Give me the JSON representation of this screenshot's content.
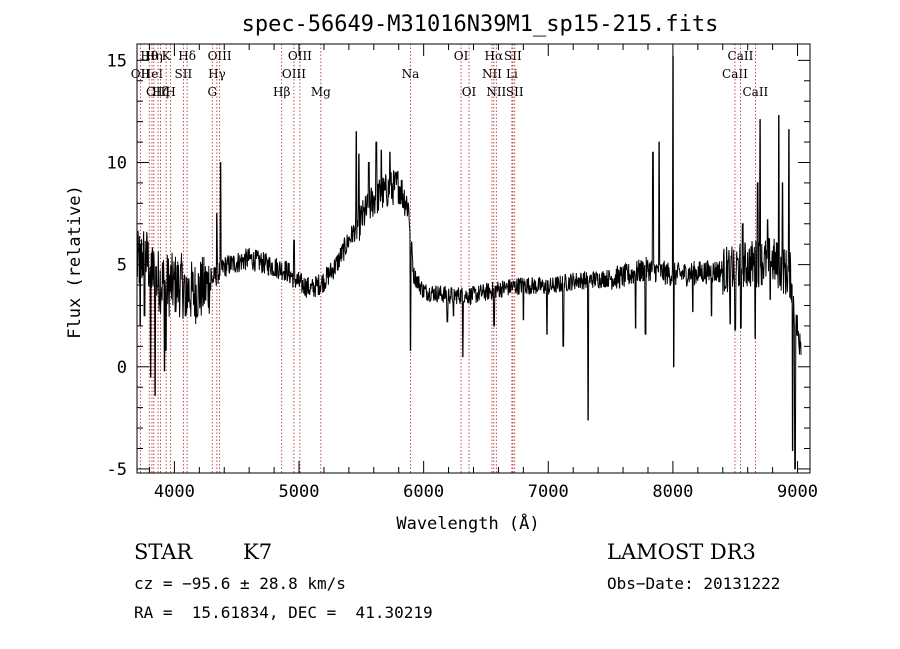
{
  "chart_data": {
    "type": "line",
    "title": "spec-56649-M31016N39M1_sp15-215.fits",
    "xlabel": "Wavelength (Å)",
    "ylabel": "Flux (relative)",
    "xlim": [
      3700,
      9100
    ],
    "ylim": [
      -5.2,
      15.8
    ],
    "x_ticks": [
      4000,
      5000,
      6000,
      7000,
      8000,
      9000
    ],
    "y_ticks": [
      -5,
      0,
      5,
      10,
      15
    ],
    "grid": false,
    "line_color": "#000000",
    "marker_color": "#b22222",
    "spectrum": {
      "name": "",
      "anchors": [
        [
          3700,
          5.0
        ],
        [
          3760,
          5.5
        ],
        [
          3850,
          4.3
        ],
        [
          3950,
          4.0
        ],
        [
          4050,
          4.0
        ],
        [
          4150,
          3.6
        ],
        [
          4250,
          3.9
        ],
        [
          4400,
          4.9
        ],
        [
          4500,
          5.1
        ],
        [
          4600,
          5.3
        ],
        [
          4700,
          5.1
        ],
        [
          4800,
          4.9
        ],
        [
          4900,
          4.7
        ],
        [
          5000,
          4.1
        ],
        [
          5100,
          3.8
        ],
        [
          5200,
          4.2
        ],
        [
          5300,
          5.0
        ],
        [
          5400,
          6.2
        ],
        [
          5500,
          7.2
        ],
        [
          5600,
          8.2
        ],
        [
          5700,
          8.6
        ],
        [
          5800,
          8.9
        ],
        [
          5880,
          7.8
        ],
        [
          5920,
          4.5
        ],
        [
          6000,
          3.7
        ],
        [
          6200,
          3.5
        ],
        [
          6400,
          3.5
        ],
        [
          6600,
          3.8
        ],
        [
          6800,
          4.0
        ],
        [
          7000,
          3.9
        ],
        [
          7200,
          4.2
        ],
        [
          7400,
          4.3
        ],
        [
          7600,
          4.4
        ],
        [
          7800,
          4.8
        ],
        [
          8000,
          4.5
        ],
        [
          8200,
          4.6
        ],
        [
          8400,
          4.7
        ],
        [
          8600,
          5.0
        ],
        [
          8800,
          5.2
        ],
        [
          8950,
          4.4
        ],
        [
          9000,
          1.6
        ]
      ],
      "features": [
        [
          3725,
          2.0
        ],
        [
          3760,
          2.5
        ],
        [
          3810,
          -0.5
        ],
        [
          3845,
          -1.4
        ],
        [
          3920,
          -0.2
        ],
        [
          3933,
          0.8
        ],
        [
          4090,
          2.5
        ],
        [
          4340,
          7.5
        ],
        [
          4370,
          10.0
        ],
        [
          4960,
          6.2
        ],
        [
          5460,
          11.5
        ],
        [
          5480,
          10.4
        ],
        [
          5560,
          10.0
        ],
        [
          5620,
          11.0
        ],
        [
          5660,
          10.6
        ],
        [
          5730,
          10.5
        ],
        [
          5895,
          0.8
        ],
        [
          6190,
          2.2
        ],
        [
          6240,
          2.5
        ],
        [
          6315,
          0.5
        ],
        [
          6565,
          2.0
        ],
        [
          6800,
          2.3
        ],
        [
          6990,
          1.6
        ],
        [
          7120,
          1.0
        ],
        [
          7320,
          -2.6
        ],
        [
          7700,
          1.9
        ],
        [
          7780,
          1.6
        ],
        [
          7840,
          10.5
        ],
        [
          7890,
          11.0
        ],
        [
          8000,
          15.2
        ],
        [
          8005,
          0.0
        ],
        [
          8160,
          2.7
        ],
        [
          8310,
          2.5
        ],
        [
          8460,
          2.1
        ],
        [
          8500,
          1.8
        ],
        [
          8545,
          1.9
        ],
        [
          8560,
          7.0
        ],
        [
          8660,
          1.4
        ],
        [
          8680,
          9.0
        ],
        [
          8700,
          12.1
        ],
        [
          8760,
          7.2
        ],
        [
          8780,
          3.3
        ],
        [
          8850,
          12.3
        ],
        [
          8880,
          9.0
        ],
        [
          8930,
          11.6
        ],
        [
          8960,
          -4.1
        ],
        [
          8980,
          -5.0
        ]
      ]
    },
    "line_markers": [
      {
        "x": 3727,
        "row": 1,
        "label": "OII"
      },
      {
        "x": 3798,
        "row": 0,
        "label": "Hθ"
      },
      {
        "x": 3820,
        "row": 1,
        "label": "HeI"
      },
      {
        "x": 3835,
        "row": 0,
        "label": "Hη"
      },
      {
        "x": 3869,
        "row": 2,
        "label": "OIII"
      },
      {
        "x": 3889,
        "row": 2,
        "label": "Hζ"
      },
      {
        "x": 3934,
        "row": 0,
        "label": "K"
      },
      {
        "x": 3970,
        "row": 2,
        "label": "H"
      },
      {
        "x": 4072,
        "row": 1,
        "label": "SII"
      },
      {
        "x": 4102,
        "row": 0,
        "label": "Hδ"
      },
      {
        "x": 4304,
        "row": 2,
        "label": "G"
      },
      {
        "x": 4341,
        "row": 1,
        "label": "Hγ"
      },
      {
        "x": 4363,
        "row": 0,
        "label": "OIII"
      },
      {
        "x": 4861,
        "row": 2,
        "label": "Hβ"
      },
      {
        "x": 4959,
        "row": 1,
        "label": "OIII"
      },
      {
        "x": 5007,
        "row": 0,
        "label": "OIII"
      },
      {
        "x": 5175,
        "row": 2,
        "label": "Mg"
      },
      {
        "x": 5894,
        "row": 1,
        "label": "Na"
      },
      {
        "x": 6300,
        "row": 0,
        "label": "OI"
      },
      {
        "x": 6364,
        "row": 2,
        "label": "OI"
      },
      {
        "x": 6548,
        "row": 1,
        "label": "NII"
      },
      {
        "x": 6563,
        "row": 0,
        "label": "Hα"
      },
      {
        "x": 6583,
        "row": 2,
        "label": "NII"
      },
      {
        "x": 6708,
        "row": 1,
        "label": "Li"
      },
      {
        "x": 6716,
        "row": 0,
        "label": "SII"
      },
      {
        "x": 6731,
        "row": 2,
        "label": "SII"
      },
      {
        "x": 8498,
        "row": 1,
        "label": "CaII"
      },
      {
        "x": 8542,
        "row": 0,
        "label": "CaII"
      },
      {
        "x": 8662,
        "row": 2,
        "label": "CaII"
      }
    ]
  },
  "info": {
    "class": "STAR",
    "subclass": "K7",
    "survey": "LAMOST DR3",
    "cz": "cz = −95.6 ± 28.8 km/s",
    "obs_date": "Obs−Date: 20131222",
    "coords": "RA =  15.61834, DEC =  41.30219"
  }
}
